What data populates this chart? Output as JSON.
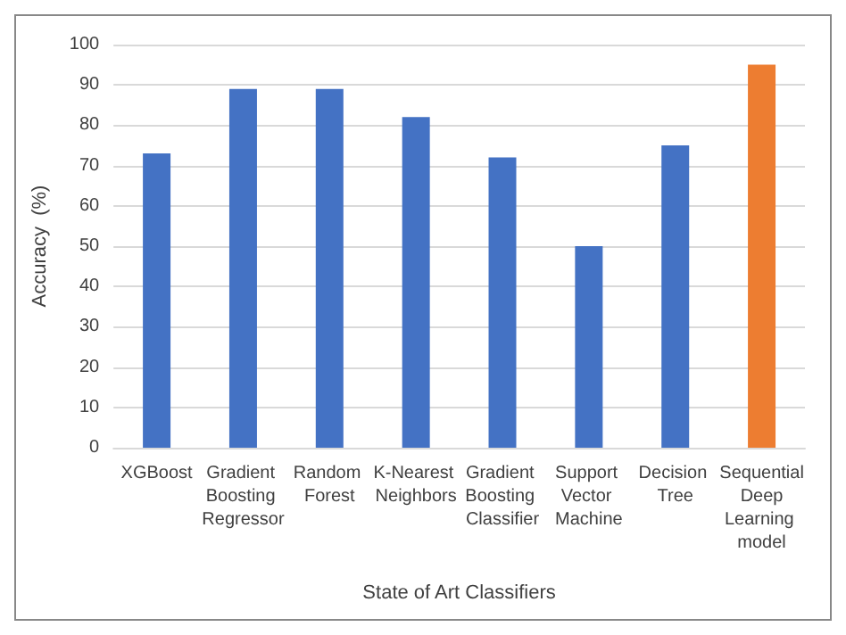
{
  "chart_data": {
    "type": "bar",
    "xlabel": "State of Art Classifiers",
    "ylabel": "Accuracy  (%)",
    "categories": [
      "XGBoost",
      "Gradient Boosting Regressor",
      "Random Forest",
      "K-Nearest Neighbors",
      "Gradient Boosting Classifier",
      "Support Vector Machine",
      "Decision Tree",
      "Sequential Deep Learning model"
    ],
    "values": [
      73,
      89,
      89,
      82,
      72,
      50,
      75,
      95
    ],
    "colors": [
      "#4472c4",
      "#4472c4",
      "#4472c4",
      "#4472c4",
      "#4472c4",
      "#4472c4",
      "#4472c4",
      "#ed7d31"
    ],
    "ylim": [
      0,
      100
    ],
    "yticks": [
      0,
      10,
      20,
      30,
      40,
      50,
      60,
      70,
      80,
      90,
      100
    ],
    "grid": "y"
  }
}
